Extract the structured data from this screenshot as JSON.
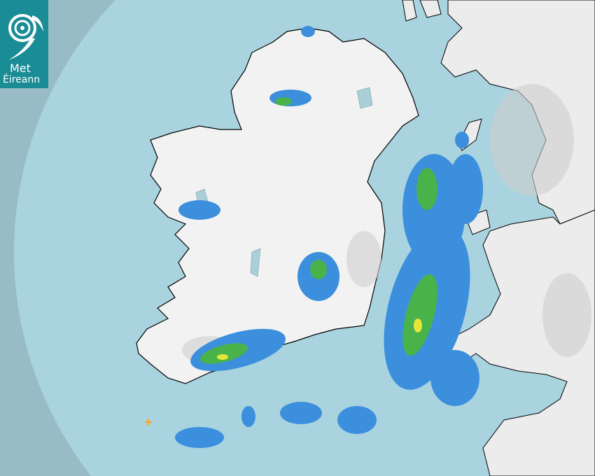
{
  "logo": {
    "line1": "Met",
    "line2": "Éireann",
    "color": "#1a8c96"
  },
  "colors": {
    "outer_sea": "#98bcc6",
    "radar_coverage_sea": "#a9d3df",
    "land": "#f2f2f2",
    "lakes": "#a9cfd9",
    "rain_light": "#3b8fdc",
    "rain_moderate": "#49b34a",
    "rain_heavy": "#e6e63a",
    "lightning": "#f5a623"
  },
  "markers": [
    {
      "type": "lightning-strike",
      "icon": "plus-icon"
    }
  ]
}
